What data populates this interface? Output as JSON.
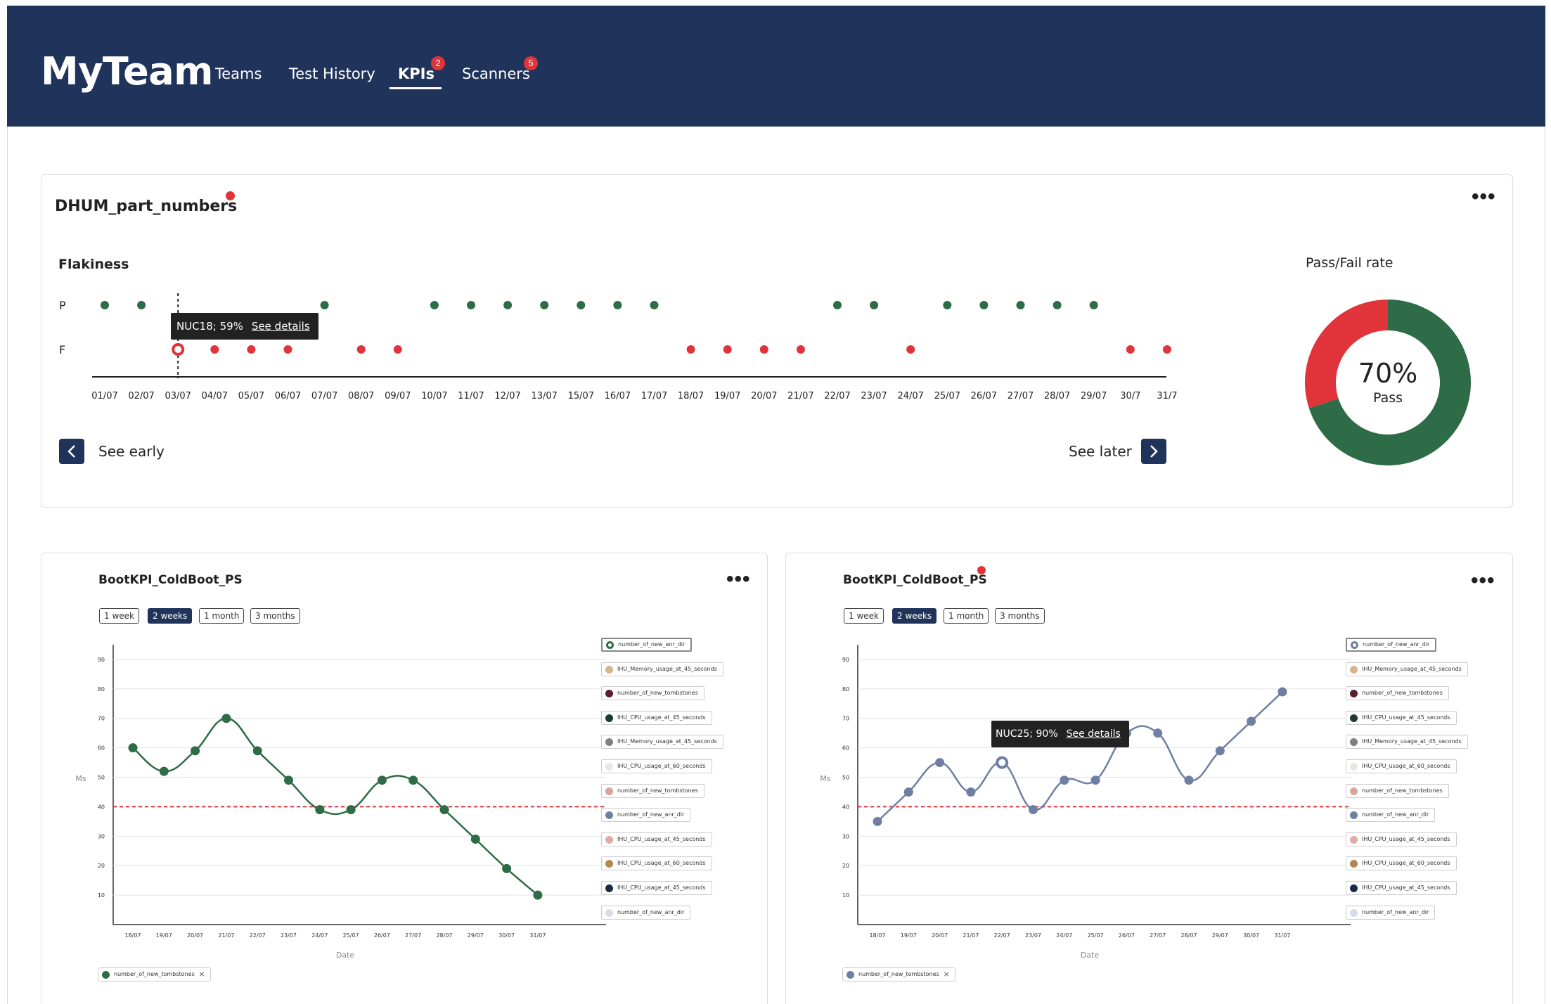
{
  "app": {
    "logo": "MyTeam",
    "nav": [
      {
        "label": "Teams"
      },
      {
        "label": "Test History"
      },
      {
        "label": "KPIs",
        "badge": "2"
      },
      {
        "label": "Scanners",
        "badge": "5"
      }
    ]
  },
  "colors": {
    "header": "#20335a",
    "pass": "#2e6b47",
    "fail": "#e0343a",
    "series_blue": "#6f7fa3"
  },
  "flakiness_card": {
    "title": "DHUM_part_numbers",
    "section_label": "Flakiness",
    "row_labels": [
      "P",
      "F"
    ],
    "dates": [
      "01/07",
      "02/07",
      "03/07",
      "04/07",
      "05/07",
      "06/07",
      "07/07",
      "08/07",
      "09/07",
      "10/07",
      "11/07",
      "12/07",
      "13/07",
      "15/07",
      "16/07",
      "17/07",
      "18/07",
      "19/07",
      "20/07",
      "21/07",
      "22/07",
      "23/07",
      "24/07",
      "25/07",
      "26/07",
      "27/07",
      "28/07",
      "29/07",
      "30/7",
      "31/7"
    ],
    "results": [
      "P",
      "P",
      "F",
      "F",
      "F",
      "F",
      "P",
      "F",
      "F",
      "P",
      "P",
      "P",
      "P",
      "P",
      "P",
      "P",
      "F",
      "F",
      "F",
      "F",
      "P",
      "P",
      "F",
      "P",
      "P",
      "P",
      "P",
      "P",
      "F",
      "F"
    ],
    "tooltip": {
      "text": "NUC18; 59%",
      "link": "See details"
    },
    "see_early": "See early",
    "see_later": "See later",
    "pass_fail": {
      "label": "Pass/Fail rate",
      "percent_text": "70%",
      "sub": "Pass",
      "pass_fraction": 0.7
    }
  },
  "range_buttons": [
    "1 week",
    "2 weeks",
    "1 month",
    "3 months"
  ],
  "legend_items": [
    {
      "label": "number_of_new_anr_dir",
      "color": "#2e6b47"
    },
    {
      "label": "IHU_Memory_usage_at_45_seconds",
      "color": "#d9b38c"
    },
    {
      "label": "number_of_new_tombstones",
      "color": "#5a1f2a"
    },
    {
      "label": "IHU_CPU_usage_at_45_seconds",
      "color": "#1f3a2d"
    },
    {
      "label": "IHU_Memory_usage_at_45_seconds",
      "color": "#808080"
    },
    {
      "label": "IHU_CPU_usage_at_60_seconds",
      "color": "#e8e6df"
    },
    {
      "label": "number_of_new_tombstones",
      "color": "#d9a59a"
    },
    {
      "label": "number_of_new_anr_dir",
      "color": "#6f7fa3"
    },
    {
      "label": "IHU_CPU_usage_at_45_seconds",
      "color": "#e0aaa8"
    },
    {
      "label": "IHU_CPU_usage_at_60_seconds",
      "color": "#b08850"
    },
    {
      "label": "IHU_CPU_usage_at_45_seconds",
      "color": "#1c2a4a"
    },
    {
      "label": "number_of_new_anr_dir",
      "color": "#d8dde8"
    }
  ],
  "kpi_left": {
    "title": "BootKPI_ColdBoot_PS",
    "chip": "number_of_new_tombstones",
    "chip_close": "×"
  },
  "kpi_right": {
    "title": "BootKPI_ColdBoot_PS",
    "chip": "number_of_new_tombstones",
    "chip_close": "×",
    "tooltip": {
      "text": "NUC25; 90%",
      "link": "See details"
    }
  },
  "chart_data": [
    {
      "type": "line",
      "title": "BootKPI_ColdBoot_PS",
      "xlabel": "Date",
      "ylabel": "Ms",
      "y_ticks": [
        10,
        20,
        30,
        40,
        50,
        60,
        70,
        80,
        90
      ],
      "ylim": [
        0,
        95
      ],
      "threshold": 40,
      "categories": [
        "18/07",
        "19/07",
        "20/07",
        "21/07",
        "22/07",
        "23/07",
        "24/07",
        "25/07",
        "26/07",
        "27/07",
        "28/07",
        "29/07",
        "30/07",
        "31/07"
      ],
      "series": [
        {
          "name": "number_of_new_tombstones",
          "color": "#2e6b47",
          "values": [
            60,
            52,
            59,
            70,
            59,
            49,
            39,
            39,
            49,
            49,
            39,
            29,
            19,
            10
          ]
        }
      ],
      "grid": true
    },
    {
      "type": "line",
      "title": "BootKPI_ColdBoot_PS",
      "xlabel": "Date",
      "ylabel": "Ms",
      "y_ticks": [
        10,
        20,
        30,
        40,
        50,
        60,
        70,
        80,
        90
      ],
      "ylim": [
        0,
        95
      ],
      "threshold": 40,
      "categories": [
        "18/07",
        "19/07",
        "20/07",
        "21/07",
        "22/07",
        "23/07",
        "24/07",
        "25/07",
        "26/07",
        "27/07",
        "28/07",
        "29/07",
        "30/07",
        "31/07"
      ],
      "series": [
        {
          "name": "number_of_new_tombstones",
          "color": "#6f7fa3",
          "values": [
            35,
            45,
            55,
            45,
            55,
            39,
            49,
            49,
            65,
            65,
            49,
            59,
            69,
            79
          ]
        }
      ],
      "grid": true
    }
  ]
}
